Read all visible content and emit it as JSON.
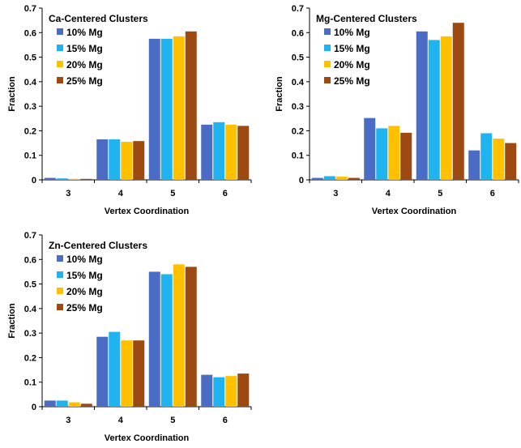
{
  "chart_data": [
    {
      "type": "bar",
      "title": "Ca-Centered Clusters",
      "xlabel": "Vertex Coordination",
      "ylabel": "Fraction",
      "ylim": [
        0,
        0.7
      ],
      "yticks": [
        "0",
        "0.1",
        "0.2",
        "0.3",
        "0.4",
        "0.5",
        "0.6",
        "0.7"
      ],
      "categories": [
        "3",
        "4",
        "5",
        "6"
      ],
      "legend_position": "top-left",
      "series": [
        {
          "name": "10% Mg",
          "color": "#4a6cc4",
          "values": [
            0.008,
            0.165,
            0.575,
            0.225
          ]
        },
        {
          "name": "15% Mg",
          "color": "#1fb4f0",
          "values": [
            0.006,
            0.165,
            0.575,
            0.235
          ]
        },
        {
          "name": "20% Mg",
          "color": "#ffc000",
          "values": [
            0.004,
            0.155,
            0.585,
            0.225
          ]
        },
        {
          "name": "25% Mg",
          "color": "#9c4a12",
          "values": [
            0.004,
            0.158,
            0.605,
            0.22
          ]
        }
      ]
    },
    {
      "type": "bar",
      "title": "Mg-Centered Clusters",
      "xlabel": "Vertex Coordination",
      "ylabel": "Fraction",
      "ylim": [
        0,
        0.7
      ],
      "yticks": [
        "0",
        "0.1",
        "0.2",
        "0.3",
        "0.4",
        "0.5",
        "0.6",
        "0.7"
      ],
      "categories": [
        "3",
        "4",
        "5",
        "6"
      ],
      "legend_position": "top-left",
      "series": [
        {
          "name": "10% Mg",
          "color": "#4a6cc4",
          "values": [
            0.008,
            0.252,
            0.605,
            0.12
          ]
        },
        {
          "name": "15% Mg",
          "color": "#1fb4f0",
          "values": [
            0.015,
            0.21,
            0.57,
            0.19
          ]
        },
        {
          "name": "20% Mg",
          "color": "#ffc000",
          "values": [
            0.013,
            0.22,
            0.585,
            0.168
          ]
        },
        {
          "name": "25% Mg",
          "color": "#9c4a12",
          "values": [
            0.008,
            0.192,
            0.64,
            0.15
          ]
        }
      ]
    },
    {
      "type": "bar",
      "title": "Zn-Centered Clusters",
      "xlabel": "Vertex Coordination",
      "ylabel": "Fraction",
      "ylim": [
        0,
        0.7
      ],
      "yticks": [
        "0",
        "0.1",
        "0.2",
        "0.3",
        "0.4",
        "0.5",
        "0.6",
        "0.7"
      ],
      "categories": [
        "3",
        "4",
        "5",
        "6"
      ],
      "legend_position": "top-left",
      "series": [
        {
          "name": "10% Mg",
          "color": "#4a6cc4",
          "values": [
            0.025,
            0.285,
            0.55,
            0.13
          ]
        },
        {
          "name": "15% Mg",
          "color": "#1fb4f0",
          "values": [
            0.025,
            0.305,
            0.54,
            0.12
          ]
        },
        {
          "name": "20% Mg",
          "color": "#ffc000",
          "values": [
            0.018,
            0.27,
            0.58,
            0.125
          ]
        },
        {
          "name": "25% Mg",
          "color": "#9c4a12",
          "values": [
            0.012,
            0.27,
            0.57,
            0.135
          ]
        }
      ]
    }
  ]
}
